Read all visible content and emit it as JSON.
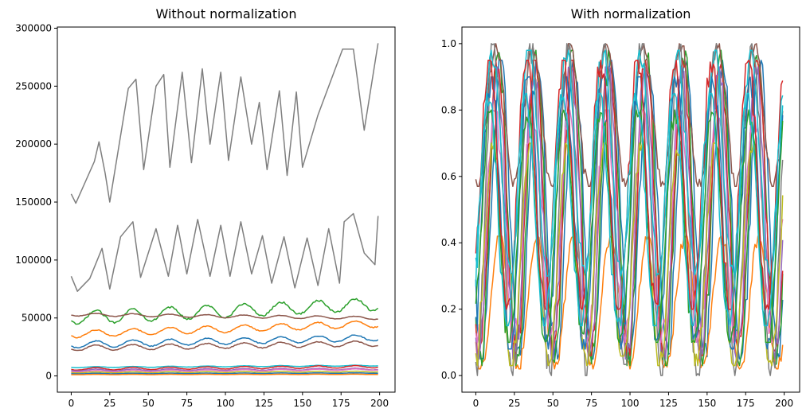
{
  "chart_data": [
    {
      "type": "line",
      "title": "Without normalization",
      "xlabel": "",
      "ylabel": "",
      "xlim": [
        -9,
        210
      ],
      "ylim": [
        -14000,
        301000
      ],
      "x_ticks": [
        0,
        25,
        50,
        75,
        100,
        125,
        150,
        175,
        200
      ],
      "x_tick_labels": [
        "0",
        "25",
        "50",
        "75",
        "100",
        "125",
        "150",
        "175",
        "200"
      ],
      "y_ticks": [
        0,
        50000,
        100000,
        150000,
        200000,
        250000,
        300000
      ],
      "y_tick_labels": [
        "0",
        "50000",
        "100000",
        "150000",
        "200000",
        "250000",
        "300000"
      ],
      "grid": false,
      "legend": "none",
      "x_range": [
        0,
        199
      ],
      "series": [
        {
          "color": "#7f7f7f",
          "base": 155000,
          "amplitude": 60000,
          "trend": 55000,
          "peak_points": [
            [
              0,
              157000
            ],
            [
              3,
              149000
            ],
            [
              15,
              185000
            ],
            [
              18,
              202000
            ],
            [
              22,
              175000
            ],
            [
              25,
              150000
            ],
            [
              37,
              248000
            ],
            [
              42,
              256000
            ],
            [
              47,
              178000
            ],
            [
              55,
              250000
            ],
            [
              60,
              260000
            ],
            [
              64,
              180000
            ],
            [
              72,
              262000
            ],
            [
              78,
              184000
            ],
            [
              85,
              265000
            ],
            [
              90,
              200000
            ],
            [
              97,
              262000
            ],
            [
              102,
              186000
            ],
            [
              110,
              258000
            ],
            [
              117,
              200000
            ],
            [
              122,
              236000
            ],
            [
              127,
              178000
            ],
            [
              135,
              246000
            ],
            [
              140,
              173000
            ],
            [
              146,
              245000
            ],
            [
              150,
              180000
            ],
            [
              160,
              225000
            ],
            [
              176,
              282000
            ],
            [
              183,
              282000
            ],
            [
              190,
              212000
            ],
            [
              199,
              287000
            ]
          ]
        },
        {
          "color": "#7f7f7f",
          "base": 78000,
          "amplitude": 30000,
          "trend": 25000,
          "peak_points": [
            [
              0,
              86000
            ],
            [
              4,
              73000
            ],
            [
              12,
              84000
            ],
            [
              20,
              110000
            ],
            [
              25,
              75000
            ],
            [
              32,
              120000
            ],
            [
              40,
              133000
            ],
            [
              45,
              85000
            ],
            [
              55,
              127000
            ],
            [
              63,
              86000
            ],
            [
              69,
              130000
            ],
            [
              75,
              88000
            ],
            [
              82,
              135000
            ],
            [
              90,
              86000
            ],
            [
              97,
              130000
            ],
            [
              103,
              86000
            ],
            [
              110,
              133000
            ],
            [
              117,
              88000
            ],
            [
              124,
              121000
            ],
            [
              130,
              80000
            ],
            [
              138,
              120000
            ],
            [
              145,
              76000
            ],
            [
              153,
              119000
            ],
            [
              160,
              78000
            ],
            [
              167,
              127000
            ],
            [
              174,
              80000
            ],
            [
              177,
              133000
            ],
            [
              183,
              140000
            ],
            [
              190,
              106000
            ],
            [
              197,
              96000
            ],
            [
              199,
              138000
            ]
          ]
        },
        {
          "color": "#2ca02c",
          "base": 50000,
          "amplitude": 11000,
          "trend": 12000
        },
        {
          "color": "#8c564b",
          "base": 53000,
          "amplitude": 2500,
          "trend": -3000
        },
        {
          "color": "#ff7f0e",
          "base": 36000,
          "amplitude": 6000,
          "trend": 9000
        },
        {
          "color": "#1f77b4",
          "base": 27000,
          "amplitude": 5500,
          "trend": 6000
        },
        {
          "color": "#8c564b",
          "base": 24000,
          "amplitude": 4500,
          "trend": 4000
        },
        {
          "color": "#17becf",
          "base": 7500,
          "amplitude": 800,
          "trend": 1500
        },
        {
          "color": "#d62728",
          "base": 6000,
          "amplitude": 2000,
          "trend": 2000
        },
        {
          "color": "#9467bd",
          "base": 5000,
          "amplitude": 1500,
          "trend": 1000
        },
        {
          "color": "#e377c2",
          "base": 4000,
          "amplitude": 1200,
          "trend": 1500
        },
        {
          "color": "#bcbd22",
          "base": 3000,
          "amplitude": 800,
          "trend": 800
        },
        {
          "color": "#1f77b4",
          "base": 2000,
          "amplitude": 500,
          "trend": 500
        },
        {
          "color": "#ff7f0e",
          "base": 1200,
          "amplitude": 300,
          "trend": 200
        }
      ]
    },
    {
      "type": "line",
      "title": "With normalization",
      "xlabel": "",
      "ylabel": "",
      "xlim": [
        -9,
        210
      ],
      "ylim": [
        -0.05,
        1.05
      ],
      "x_ticks": [
        0,
        25,
        50,
        75,
        100,
        125,
        150,
        175,
        200
      ],
      "x_tick_labels": [
        "0",
        "25",
        "50",
        "75",
        "100",
        "125",
        "150",
        "175",
        "200"
      ],
      "y_ticks": [
        0.0,
        0.2,
        0.4,
        0.6,
        0.8,
        1.0
      ],
      "y_tick_labels": [
        "0.0",
        "0.2",
        "0.4",
        "0.6",
        "0.8",
        "1.0"
      ],
      "grid": false,
      "legend": "none",
      "x_range": [
        0,
        199
      ],
      "series": [
        {
          "color": "#1f77b4",
          "low": 0.05,
          "high": 0.95
        },
        {
          "color": "#ff7f0e",
          "low": 0.02,
          "high": 0.42
        },
        {
          "color": "#2ca02c",
          "low": 0.03,
          "high": 0.98
        },
        {
          "color": "#d62728",
          "low": 0.06,
          "high": 0.95
        },
        {
          "color": "#9467bd",
          "low": 0.05,
          "high": 0.93
        },
        {
          "color": "#8c564b",
          "low": 0.57,
          "high": 1.0
        },
        {
          "color": "#e377c2",
          "low": 0.1,
          "high": 0.8
        },
        {
          "color": "#7f7f7f",
          "low": 0.0,
          "high": 1.0
        },
        {
          "color": "#bcbd22",
          "low": 0.03,
          "high": 0.7
        },
        {
          "color": "#17becf",
          "low": 0.3,
          "high": 0.98
        },
        {
          "color": "#1f77b4",
          "low": 0.08,
          "high": 0.9
        },
        {
          "color": "#2ca02c",
          "low": 0.1,
          "high": 0.8
        },
        {
          "color": "#d62728",
          "low": 0.2,
          "high": 0.95
        },
        {
          "color": "#17becf",
          "low": 0.15,
          "high": 0.85
        }
      ]
    }
  ]
}
